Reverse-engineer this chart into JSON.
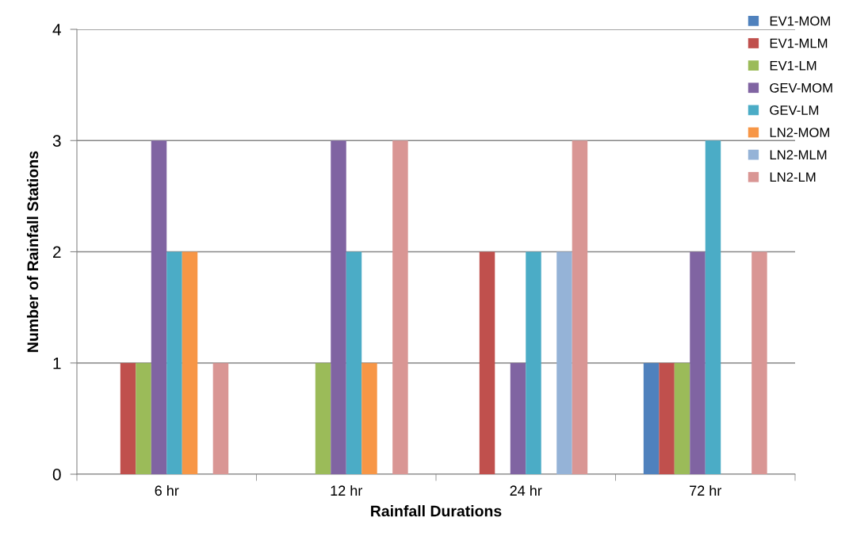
{
  "chart_data": {
    "type": "bar",
    "xlabel": "Rainfall Durations",
    "ylabel": "Number of Rainfall Stations",
    "categories": [
      "6 hr",
      "12 hr",
      "24 hr",
      "72 hr"
    ],
    "series": [
      {
        "name": "EV1-MOM",
        "color": "#4f81bd",
        "values": [
          0,
          0,
          0,
          1
        ]
      },
      {
        "name": "EV1-MLM",
        "color": "#c0504d",
        "values": [
          1,
          0,
          2,
          1
        ]
      },
      {
        "name": "EV1-LM",
        "color": "#9bbb59",
        "values": [
          1,
          1,
          0,
          1
        ]
      },
      {
        "name": "GEV-MOM",
        "color": "#8064a2",
        "values": [
          3,
          3,
          1,
          2
        ]
      },
      {
        "name": "GEV-LM",
        "color": "#4bacc6",
        "values": [
          2,
          2,
          2,
          3
        ]
      },
      {
        "name": "LN2-MOM",
        "color": "#f79646",
        "values": [
          2,
          1,
          0,
          0
        ]
      },
      {
        "name": "LN2-MLM",
        "color": "#95b3d7",
        "values": [
          0,
          0,
          2,
          0
        ]
      },
      {
        "name": "LN2-LM",
        "color": "#d99694",
        "values": [
          1,
          3,
          3,
          2
        ]
      }
    ],
    "ylim": [
      0,
      4
    ],
    "yticks": [
      0,
      1,
      2,
      3,
      4
    ],
    "grid": "y",
    "legend": "top right"
  }
}
